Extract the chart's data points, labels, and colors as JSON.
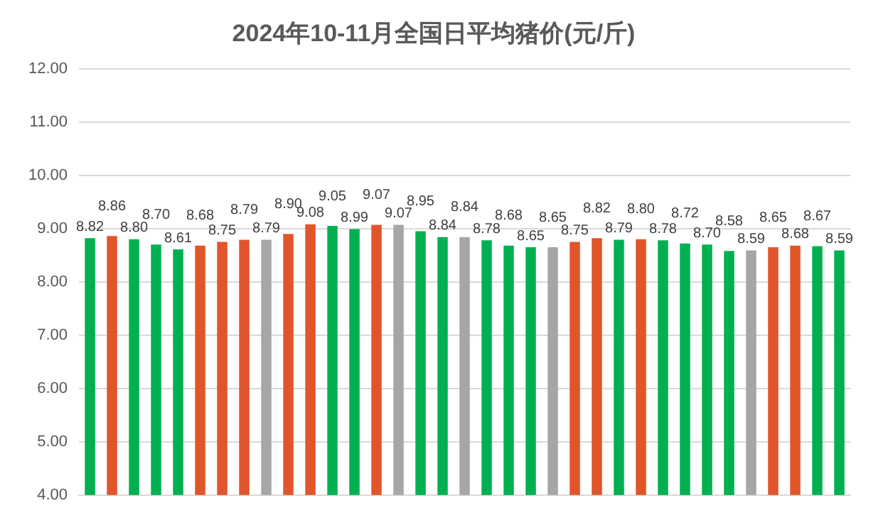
{
  "chart_data": {
    "type": "bar",
    "title": "2024年10-11月全国日平均猪价(元/斤)",
    "categories": [
      null,
      null,
      null,
      null,
      null,
      null,
      null,
      null,
      null,
      null,
      null,
      null,
      null,
      null,
      null,
      null,
      null,
      null,
      null,
      null,
      null,
      null,
      null,
      null,
      null,
      null,
      null,
      null,
      null,
      null,
      null,
      null,
      null,
      null,
      null
    ],
    "values": [
      8.82,
      8.86,
      8.8,
      8.7,
      8.61,
      8.68,
      8.75,
      8.79,
      8.79,
      8.9,
      9.08,
      9.05,
      8.99,
      9.07,
      9.07,
      8.95,
      8.84,
      8.84,
      8.78,
      8.68,
      8.65,
      8.65,
      8.75,
      8.82,
      8.79,
      8.8,
      8.78,
      8.72,
      8.7,
      8.58,
      8.59,
      8.65,
      8.68,
      8.67,
      8.59
    ],
    "value_labels": [
      "8.82",
      "8.86",
      "8.80",
      "8.70",
      "8.61",
      "8.68",
      "8.75",
      "8.79",
      "8.79",
      "8.90",
      "9.08",
      "9.05",
      "8.99",
      "9.07",
      "9.07",
      "8.95",
      "8.84",
      "8.84",
      "8.78",
      "8.68",
      "8.65",
      "8.65",
      "8.75",
      "8.82",
      "8.79",
      "8.80",
      "8.78",
      "8.72",
      "8.70",
      "8.58",
      "8.59",
      "8.65",
      "8.68",
      "8.67",
      "8.59"
    ],
    "colors": [
      "#00b050",
      "#e0562a",
      "#00b050",
      "#00b050",
      "#00b050",
      "#e0562a",
      "#e0562a",
      "#e0562a",
      "#a6a6a6",
      "#e0562a",
      "#e0562a",
      "#00b050",
      "#00b050",
      "#e0562a",
      "#a6a6a6",
      "#00b050",
      "#00b050",
      "#a6a6a6",
      "#00b050",
      "#00b050",
      "#00b050",
      "#a6a6a6",
      "#e0562a",
      "#e0562a",
      "#00b050",
      "#e0562a",
      "#00b050",
      "#00b050",
      "#00b050",
      "#00b050",
      "#a6a6a6",
      "#e0562a",
      "#e0562a",
      "#00b050",
      "#00b050"
    ],
    "ylim": [
      4,
      12
    ],
    "yticks": [
      {
        "value": 4,
        "label": "4.00"
      },
      {
        "value": 5,
        "label": "5.00"
      },
      {
        "value": 6,
        "label": "6.00"
      },
      {
        "value": 7,
        "label": "7.00"
      },
      {
        "value": 8,
        "label": "8.00"
      },
      {
        "value": 9,
        "label": "9.00"
      },
      {
        "value": 10,
        "label": "10.00"
      },
      {
        "value": 11,
        "label": "11.00"
      },
      {
        "value": 12,
        "label": "12.00"
      }
    ],
    "grid": "y"
  }
}
